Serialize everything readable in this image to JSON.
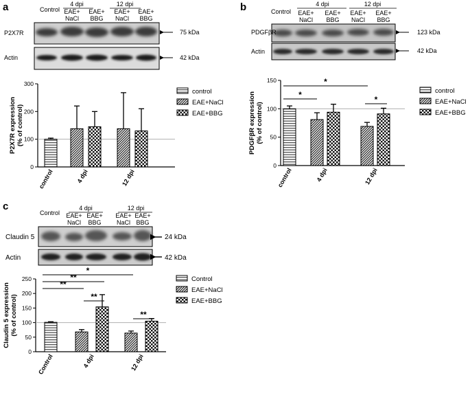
{
  "panels": {
    "a": {
      "letter": "a",
      "header": {
        "control": "Control",
        "group_4": "4 dpi",
        "group_12": "12 dpi",
        "lanes": [
          [
            "EAE+",
            "NaCl"
          ],
          [
            "EAE+",
            "BBG"
          ],
          [
            "EAE+",
            "NaCl"
          ],
          [
            "EAE+",
            "BBG"
          ]
        ]
      },
      "blots": [
        {
          "label": "P2X7R",
          "kda": "75 kDa"
        },
        {
          "label": "Actin",
          "kda": "42 kDa"
        }
      ]
    },
    "b": {
      "letter": "b",
      "header": {
        "control": "Control",
        "group_4": "4 dpi",
        "group_12": "12 dpi",
        "lanes": [
          [
            "EAE+",
            "NaCl"
          ],
          [
            "EAE+",
            "BBG"
          ],
          [
            "EAE+",
            "NaCl"
          ],
          [
            "EAE+",
            "BBG"
          ]
        ]
      },
      "blots": [
        {
          "label": "PDGFβR",
          "kda": "123 kDa"
        },
        {
          "label": "Actin",
          "kda": "42 kDa"
        }
      ]
    },
    "c": {
      "letter": "c",
      "header": {
        "control": "Control",
        "group_4": "4 dpi",
        "group_12": "12 dpi",
        "lanes": [
          [
            "EAE+",
            "NaCl"
          ],
          [
            "EAE+",
            "BBG"
          ],
          [
            "EAE+",
            "NaCl"
          ],
          [
            "EAE+",
            "BBG"
          ]
        ]
      },
      "blots": [
        {
          "label": "Claudin 5",
          "kda": "24 kDa"
        },
        {
          "label": "Actin",
          "kda": "42 kDa"
        }
      ]
    }
  },
  "chart_data": [
    {
      "panel": "a",
      "type": "bar",
      "ylabel": [
        "P2X7R expression",
        "(% of control)"
      ],
      "ylim": [
        0,
        300
      ],
      "yticks": [
        "0",
        "100",
        "200",
        "300"
      ],
      "x_groups": [
        "control",
        "4 dpi",
        "12 dpi"
      ],
      "reference_line": 100,
      "legend": [
        "control",
        "EAE+NaCl",
        "EAE+BBG"
      ],
      "series": [
        {
          "name": "control",
          "values": [
            100,
            null,
            null
          ],
          "errors": [
            4,
            null,
            null
          ]
        },
        {
          "name": "EAE+NaCl",
          "values": [
            null,
            138,
            138
          ],
          "errors": [
            null,
            82,
            130
          ]
        },
        {
          "name": "EAE+BBG",
          "values": [
            null,
            145,
            130
          ],
          "errors": [
            null,
            55,
            80
          ]
        }
      ],
      "significance": []
    },
    {
      "panel": "b",
      "type": "bar",
      "ylabel": [
        "PDGFβR expression",
        "(% of control)"
      ],
      "ylim": [
        0,
        150
      ],
      "yticks": [
        "0",
        "50",
        "100",
        "150"
      ],
      "x_groups": [
        "control",
        "4 dpi",
        "12 dpi"
      ],
      "reference_line": 100,
      "legend": [
        "control",
        "EAE+NaCl",
        "EAE+BBG"
      ],
      "series": [
        {
          "name": "control",
          "values": [
            100,
            null,
            null
          ],
          "errors": [
            5,
            null,
            null
          ]
        },
        {
          "name": "EAE+NaCl",
          "values": [
            null,
            81,
            69
          ],
          "errors": [
            null,
            12,
            7
          ]
        },
        {
          "name": "EAE+BBG",
          "values": [
            null,
            94,
            91
          ],
          "errors": [
            null,
            14,
            10
          ]
        }
      ],
      "significance": [
        {
          "from": "control",
          "to": "4 dpi EAE+NaCl",
          "label": "*"
        },
        {
          "from": "control",
          "to": "12 dpi EAE+NaCl",
          "label": "*"
        },
        {
          "from": "12 dpi EAE+NaCl",
          "to": "12 dpi EAE+BBG",
          "label": "*"
        }
      ]
    },
    {
      "panel": "c",
      "type": "bar",
      "ylabel": [
        "Claudin 5 expression",
        "(% of control)"
      ],
      "ylim": [
        0,
        250
      ],
      "yticks": [
        "0",
        "50",
        "100",
        "150",
        "200",
        "250"
      ],
      "x_groups": [
        "Control",
        "4 dpi",
        "12 dpi"
      ],
      "reference_line": 100,
      "legend": [
        "Control",
        "EAE+NaCl",
        "EAE+BBG"
      ],
      "series": [
        {
          "name": "Control",
          "values": [
            101,
            null,
            null
          ],
          "errors": [
            2,
            null,
            null
          ]
        },
        {
          "name": "EAE+NaCl",
          "values": [
            null,
            68,
            64
          ],
          "errors": [
            null,
            8,
            7
          ]
        },
        {
          "name": "EAE+BBG",
          "values": [
            null,
            154,
            105
          ],
          "errors": [
            null,
            42,
            9
          ]
        }
      ],
      "significance": [
        {
          "from": "Control",
          "to": "12 dpi EAE+NaCl",
          "label": "*"
        },
        {
          "from": "Control",
          "to": "4 dpi EAE+BBG",
          "label": "**"
        },
        {
          "from": "Control",
          "to": "4 dpi EAE+NaCl",
          "label": "**"
        },
        {
          "from": "4 dpi EAE+NaCl",
          "to": "4 dpi EAE+BBG",
          "label": "**"
        },
        {
          "from": "12 dpi EAE+NaCl",
          "to": "12 dpi EAE+BBG",
          "label": "**"
        }
      ]
    }
  ]
}
